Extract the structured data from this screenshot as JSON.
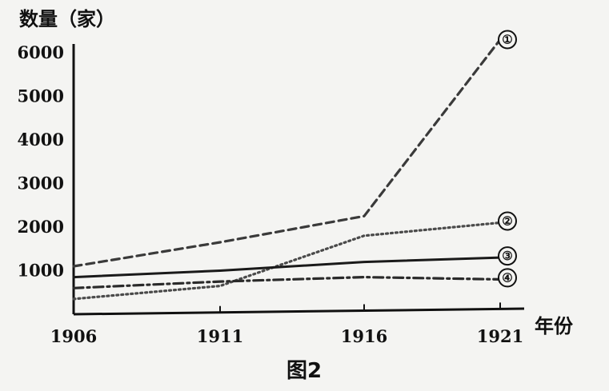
{
  "chart_data": {
    "type": "line",
    "title": "",
    "ylabel": "数量（家）",
    "xlabel": "年份",
    "caption": "图2",
    "x": [
      "1906",
      "1911",
      "1916",
      "1921"
    ],
    "yticks": [
      "1000",
      "2000",
      "3000",
      "4000",
      "5000",
      "6000"
    ],
    "ylim": [
      0,
      6500
    ],
    "grid": false,
    "series": [
      {
        "name": "①",
        "style": "dashed",
        "color": "#3a3a3a",
        "values": [
          1100,
          1650,
          2250,
          6300
        ]
      },
      {
        "name": "②",
        "style": "dotted",
        "color": "#4a4a4a",
        "values": [
          350,
          650,
          1800,
          2100
        ]
      },
      {
        "name": "③",
        "style": "solid",
        "color": "#1a1a1a",
        "values": [
          850,
          1000,
          1200,
          1300
        ]
      },
      {
        "name": "④",
        "style": "dashdot",
        "color": "#2a2a2a",
        "values": [
          600,
          750,
          850,
          800
        ]
      }
    ]
  }
}
